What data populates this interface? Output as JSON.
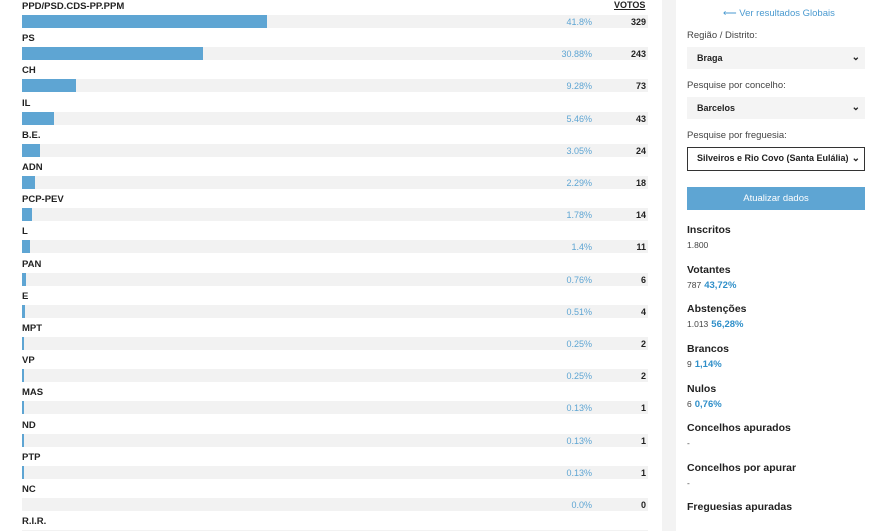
{
  "results": {
    "votes_header": "VOTOS",
    "parties": [
      {
        "name": "PPD/PSD.CDS-PP.PPM",
        "pct": "41.8%",
        "share": 41.8,
        "votes": "329"
      },
      {
        "name": "PS",
        "pct": "30.88%",
        "share": 30.88,
        "votes": "243"
      },
      {
        "name": "CH",
        "pct": "9.28%",
        "share": 9.28,
        "votes": "73"
      },
      {
        "name": "IL",
        "pct": "5.46%",
        "share": 5.46,
        "votes": "43"
      },
      {
        "name": "B.E.",
        "pct": "3.05%",
        "share": 3.05,
        "votes": "24"
      },
      {
        "name": "ADN",
        "pct": "2.29%",
        "share": 2.29,
        "votes": "18"
      },
      {
        "name": "PCP-PEV",
        "pct": "1.78%",
        "share": 1.78,
        "votes": "14"
      },
      {
        "name": "L",
        "pct": "1.4%",
        "share": 1.4,
        "votes": "11"
      },
      {
        "name": "PAN",
        "pct": "0.76%",
        "share": 0.76,
        "votes": "6"
      },
      {
        "name": "E",
        "pct": "0.51%",
        "share": 0.51,
        "votes": "4"
      },
      {
        "name": "MPT",
        "pct": "0.25%",
        "share": 0.25,
        "votes": "2"
      },
      {
        "name": "VP",
        "pct": "0.25%",
        "share": 0.25,
        "votes": "2"
      },
      {
        "name": "MAS",
        "pct": "0.13%",
        "share": 0.13,
        "votes": "1"
      },
      {
        "name": "ND",
        "pct": "0.13%",
        "share": 0.13,
        "votes": "1"
      },
      {
        "name": "PTP",
        "pct": "0.13%",
        "share": 0.13,
        "votes": "1"
      },
      {
        "name": "NC",
        "pct": "0.0%",
        "share": 0.0,
        "votes": "0"
      },
      {
        "name": "R.I.R.",
        "pct": "",
        "share": 0,
        "votes": ""
      }
    ],
    "bar_color": "#5ea5d3"
  },
  "sidebar": {
    "back_link": "Ver resultados Globais",
    "region_label": "Região / Distrito:",
    "region_value": "Braga",
    "council_label": "Pesquise por concelho:",
    "council_value": "Barcelos",
    "parish_label": "Pesquise por freguesia:",
    "parish_value": "Silveiros e Rio Covo (Santa Eulália)",
    "update_button": "Atualizar dados",
    "stats": {
      "inscritos": {
        "title": "Inscritos",
        "value": "1.800",
        "pct": ""
      },
      "votantes": {
        "title": "Votantes",
        "value": "787",
        "pct": "43,72%"
      },
      "abstencoes": {
        "title": "Abstenções",
        "value": "1.013",
        "pct": "56,28%"
      },
      "brancos": {
        "title": "Brancos",
        "value": "9",
        "pct": "1,14%"
      },
      "nulos": {
        "title": "Nulos",
        "value": "6",
        "pct": "0,76%"
      },
      "concelhos_apurados": {
        "title": "Concelhos apurados",
        "value": "-",
        "pct": ""
      },
      "concelhos_por_apurar": {
        "title": "Concelhos por apurar",
        "value": "-",
        "pct": ""
      },
      "freguesias_apuradas": {
        "title": "Freguesias apuradas",
        "value": "",
        "pct": ""
      }
    }
  }
}
